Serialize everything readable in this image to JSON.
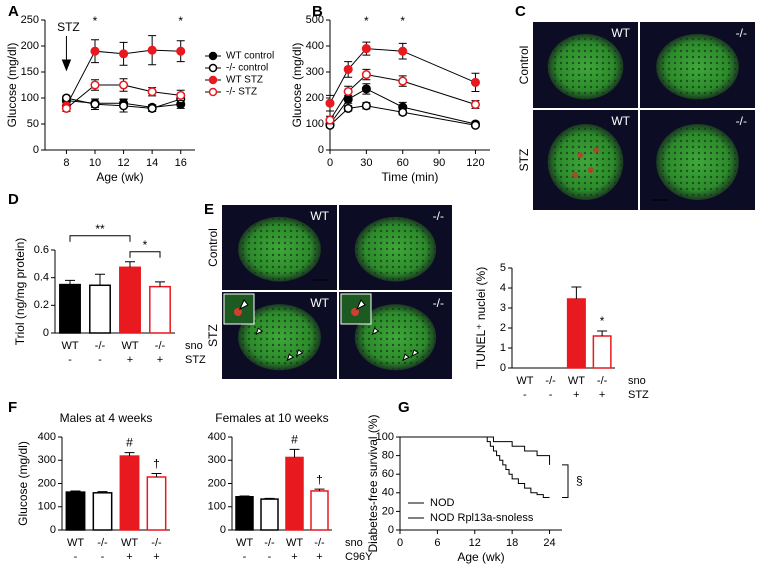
{
  "chart_data": [
    {
      "type": "line",
      "panel": "A",
      "xlabel": "Age (wk)",
      "ylabel": "Glucose (mg/dl)",
      "x": [
        8,
        10,
        12,
        14,
        16
      ],
      "xlim": [
        6.5,
        17
      ],
      "xticks": [
        8,
        10,
        12,
        14,
        16
      ],
      "ylim": [
        0,
        250
      ],
      "yticks": [
        0,
        50,
        100,
        150,
        200,
        250
      ],
      "legend": "right",
      "series": [
        {
          "name": "WT control",
          "color": "#000000",
          "marker": "filled",
          "values": [
            95,
            90,
            90,
            82,
            88
          ],
          "errors": [
            5,
            8,
            8,
            5,
            8
          ]
        },
        {
          "name": "-/- control",
          "color": "#000000",
          "marker": "open",
          "values": [
            100,
            88,
            85,
            80,
            98
          ],
          "errors": [
            4,
            10,
            12,
            6,
            10
          ]
        },
        {
          "name": "WT STZ",
          "color": "#e8191f",
          "marker": "filled",
          "values": [
            85,
            190,
            185,
            192,
            190
          ],
          "errors": [
            6,
            22,
            22,
            28,
            20
          ]
        },
        {
          "name": "-/- STZ",
          "color": "#e8191f",
          "marker": "open",
          "values": [
            80,
            125,
            125,
            112,
            105
          ],
          "errors": [
            6,
            10,
            12,
            8,
            10
          ]
        }
      ],
      "annotations": [
        {
          "text": "STZ",
          "x": 8,
          "arrow": true
        },
        {
          "text": "*",
          "x": 10
        },
        {
          "text": "*",
          "x": 16
        }
      ]
    },
    {
      "type": "line",
      "panel": "B",
      "xlabel": "Time (min)",
      "ylabel": "Glucose (mg/dl)",
      "x": [
        0,
        15,
        30,
        60,
        120
      ],
      "xlim": [
        0,
        132
      ],
      "xticks": [
        0,
        30,
        60,
        90,
        120
      ],
      "ylim": [
        0,
        500
      ],
      "yticks": [
        0,
        100,
        200,
        300,
        400,
        500
      ],
      "series": [
        {
          "color": "#000000",
          "marker": "filled",
          "values": [
            100,
            195,
            235,
            165,
            100
          ],
          "errors": [
            10,
            15,
            20,
            18,
            8
          ]
        },
        {
          "color": "#000000",
          "marker": "open",
          "values": [
            95,
            160,
            170,
            145,
            95
          ],
          "errors": [
            8,
            10,
            12,
            10,
            6
          ]
        },
        {
          "color": "#e8191f",
          "marker": "filled",
          "values": [
            180,
            310,
            390,
            380,
            260
          ],
          "errors": [
            30,
            30,
            25,
            30,
            35
          ]
        },
        {
          "color": "#e8191f",
          "marker": "open",
          "values": [
            115,
            225,
            290,
            265,
            175
          ],
          "errors": [
            15,
            20,
            20,
            20,
            15
          ]
        }
      ],
      "annotations": [
        {
          "text": "*",
          "x": 30
        },
        {
          "text": "*",
          "x": 60
        }
      ]
    },
    {
      "type": "image_grid",
      "panel": "C",
      "rows": [
        "Control",
        "STZ"
      ],
      "cells": [
        [
          "WT",
          "-/-"
        ],
        [
          "WT",
          "-/-"
        ]
      ]
    },
    {
      "type": "bar",
      "panel": "D",
      "ylabel": "Triol (ng/mg protein)",
      "categories": [
        "WT",
        "-/-",
        "WT",
        "-/-"
      ],
      "categories_name": "sno",
      "groups": [
        "-",
        "-",
        "+",
        "+"
      ],
      "groups_name": "STZ",
      "values": [
        0.35,
        0.345,
        0.475,
        0.335
      ],
      "errors": [
        0.03,
        0.08,
        0.04,
        0.035
      ],
      "colors": [
        "#000000",
        "#ffffff",
        "#e8191f",
        "#ffffff"
      ],
      "edgecolors": [
        "#000000",
        "#000000",
        "#e8191f",
        "#e8191f"
      ],
      "ylim": [
        0,
        0.6
      ],
      "yticks": [
        0,
        0.2,
        0.4,
        0.6
      ],
      "significance": [
        {
          "text": "**",
          "from": 0,
          "to": 2
        },
        {
          "text": "*",
          "from": 2,
          "to": 3
        }
      ]
    },
    {
      "type": "image_grid",
      "panel": "E",
      "rows": [
        "Control",
        "STZ"
      ],
      "cells": [
        [
          "WT",
          "-/-"
        ],
        [
          "WT",
          "-/-"
        ]
      ]
    },
    {
      "type": "bar",
      "ylabel": "TUNEL⁺ nuclei (%)",
      "categories": [
        "WT",
        "-/-",
        "WT",
        "-/-"
      ],
      "categories_name": "sno",
      "groups": [
        "-",
        "-",
        "+",
        "+"
      ],
      "groups_name": "STZ",
      "values": [
        0,
        0,
        3.45,
        1.6
      ],
      "errors": [
        0,
        0,
        0.6,
        0.25
      ],
      "colors": [
        "#000000",
        "#ffffff",
        "#e8191f",
        "#ffffff"
      ],
      "edgecolors": [
        "#000000",
        "#000000",
        "#e8191f",
        "#e8191f"
      ],
      "ylim": [
        0,
        5
      ],
      "yticks": [
        0,
        1,
        2,
        3,
        4,
        5
      ],
      "annotations": [
        {
          "text": "*",
          "category": 3
        }
      ]
    },
    {
      "type": "bar",
      "panel": "F",
      "title": "Males at 4 weeks",
      "ylabel": "Glucose (mg/dl)",
      "categories": [
        "WT",
        "-/-",
        "WT",
        "-/-"
      ],
      "groups": [
        "-",
        "-",
        "+",
        "+"
      ],
      "values": [
        163,
        160,
        318,
        228
      ],
      "errors": [
        5,
        5,
        15,
        15
      ],
      "colors": [
        "#000000",
        "#ffffff",
        "#e8191f",
        "#ffffff"
      ],
      "edgecolors": [
        "#000000",
        "#000000",
        "#e8191f",
        "#e8191f"
      ],
      "ylim": [
        0,
        400
      ],
      "yticks": [
        0,
        100,
        200,
        300,
        400
      ],
      "annotations": [
        {
          "text": "#",
          "category": 2
        },
        {
          "text": "†",
          "category": 3
        }
      ]
    },
    {
      "type": "bar",
      "title": "Females at 10 weeks",
      "categories": [
        "WT",
        "-/-",
        "WT",
        "-/-"
      ],
      "categories_name": "sno",
      "groups": [
        "-",
        "-",
        "+",
        "+"
      ],
      "groups_name": "C96Y",
      "values": [
        143,
        133,
        312,
        168
      ],
      "errors": [
        3,
        3,
        35,
        8
      ],
      "colors": [
        "#000000",
        "#ffffff",
        "#e8191f",
        "#ffffff"
      ],
      "edgecolors": [
        "#000000",
        "#000000",
        "#e8191f",
        "#e8191f"
      ],
      "ylim": [
        0,
        400
      ],
      "yticks": [
        0,
        100,
        200,
        300,
        400
      ],
      "annotations": [
        {
          "text": "#",
          "category": 2
        },
        {
          "text": "†",
          "category": 3
        }
      ]
    },
    {
      "type": "step",
      "panel": "G",
      "xlabel": "Age (wk)",
      "ylabel": "Diabetes-free survival (%)",
      "xlim": [
        0,
        26
      ],
      "xticks": [
        0,
        6,
        12,
        18,
        24
      ],
      "ylim": [
        0,
        100
      ],
      "yticks": [
        0,
        20,
        40,
        60,
        80,
        100
      ],
      "legend": "lower left",
      "series": [
        {
          "name": "NOD",
          "color": "#000000",
          "x": [
            0,
            14,
            14.5,
            15,
            15.5,
            16,
            16.5,
            17,
            17.5,
            18,
            19,
            20,
            21,
            22,
            23,
            24
          ],
          "values": [
            100,
            95,
            90,
            85,
            80,
            75,
            70,
            65,
            60,
            55,
            50,
            45,
            40,
            38,
            35,
            35
          ]
        },
        {
          "name": "NOD Rpl13a-snoless",
          "color": "#e8191f",
          "x": [
            0,
            15,
            18,
            20,
            22,
            24
          ],
          "values": [
            100,
            95,
            90,
            85,
            80,
            70
          ]
        }
      ],
      "annotations": [
        {
          "text": "§"
        }
      ]
    }
  ]
}
